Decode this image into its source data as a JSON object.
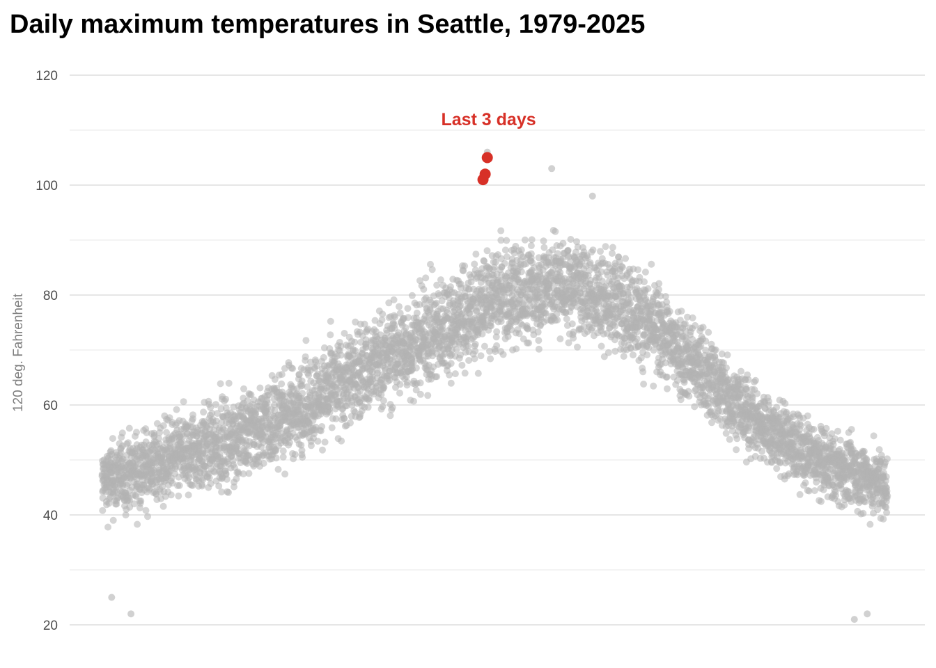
{
  "chart_data": {
    "type": "scatter",
    "title": "Daily maximum temperatures in Seattle, 1979-2025",
    "xlabel": "",
    "ylabel": "120 deg. Fahrenheit",
    "ylim": [
      20,
      120
    ],
    "yticks": [
      20,
      40,
      60,
      80,
      100,
      120
    ],
    "xlim": [
      1,
      366
    ],
    "x_tick_labels": [],
    "grid": true,
    "colors": {
      "historical": "#b3b3b3",
      "highlight": "#d73027",
      "grid": "#e6e6e6"
    },
    "annotation": {
      "text": "Last 3 days",
      "x": 178,
      "y": 112
    },
    "series": [
      {
        "role": "historical",
        "x": "day of year (1-366)",
        "y": "daily maximum temperature, one point per day 1979-2025",
        "seasonal_envelope": [
          {
            "day": 1,
            "typical_min": 37,
            "typical_max": 55
          },
          {
            "day": 32,
            "typical_min": 40,
            "typical_max": 60
          },
          {
            "day": 60,
            "typical_min": 43,
            "typical_max": 64
          },
          {
            "day": 91,
            "typical_min": 48,
            "typical_max": 70
          },
          {
            "day": 121,
            "typical_min": 54,
            "typical_max": 78
          },
          {
            "day": 152,
            "typical_min": 60,
            "typical_max": 85
          },
          {
            "day": 182,
            "typical_min": 66,
            "typical_max": 92
          },
          {
            "day": 213,
            "typical_min": 70,
            "typical_max": 94
          },
          {
            "day": 244,
            "typical_min": 67,
            "typical_max": 90
          },
          {
            "day": 274,
            "typical_min": 57,
            "typical_max": 80
          },
          {
            "day": 305,
            "typical_min": 48,
            "typical_max": 66
          },
          {
            "day": 335,
            "typical_min": 41,
            "typical_max": 58
          },
          {
            "day": 366,
            "typical_min": 37,
            "typical_max": 54
          }
        ],
        "extremes": [
          {
            "x": 14,
            "y": 22
          },
          {
            "x": 5,
            "y": 25
          },
          {
            "x": 210,
            "y": 103
          },
          {
            "x": 229,
            "y": 98
          },
          {
            "x": 351,
            "y": 21
          },
          {
            "x": 357,
            "y": 22
          },
          {
            "x": 180,
            "y": 106
          }
        ]
      },
      {
        "role": "highlight",
        "name": "Last 3 days",
        "points": [
          {
            "x": 178,
            "y": 101
          },
          {
            "x": 179,
            "y": 102
          },
          {
            "x": 180,
            "y": 105
          }
        ]
      }
    ]
  }
}
